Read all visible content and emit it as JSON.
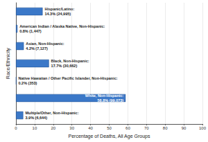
{
  "chart_data": {
    "type": "bar",
    "orientation": "horizontal",
    "xlabel": "Percentage of Deaths, All Age Groups",
    "ylabel": "Race/Ethnicity",
    "categories": [
      "Hispanic/Latino:",
      "American Indian / Alaska Native, Non-Hispanic:",
      "Asian, Non-Hispanic:",
      "Black, Non-Hispanic:",
      "Native Hawaiian / Other Pacific Islander, Non-Hispanic:",
      "White, Non-Hispanic:",
      "Multiple/Other, Non-Hispanic:"
    ],
    "values": [
      14.3,
      0.8,
      4.2,
      17.7,
      0.2,
      58.8,
      3.9
    ],
    "value_labels": [
      "14.3% (24,995)",
      "0.8% (1,447)",
      "4.2% (7,127)",
      "17.7% (30,662)",
      "0.2% (353)",
      "58.8% (99,073)",
      "3.9% (6,644)"
    ],
    "color": "#3b78c8",
    "xlim": [
      0,
      100
    ],
    "xticks": [
      0,
      10,
      20,
      30,
      40,
      50,
      60,
      70,
      80,
      90,
      100
    ],
    "grid": true,
    "data_labels": true,
    "tick_labels": "x"
  }
}
